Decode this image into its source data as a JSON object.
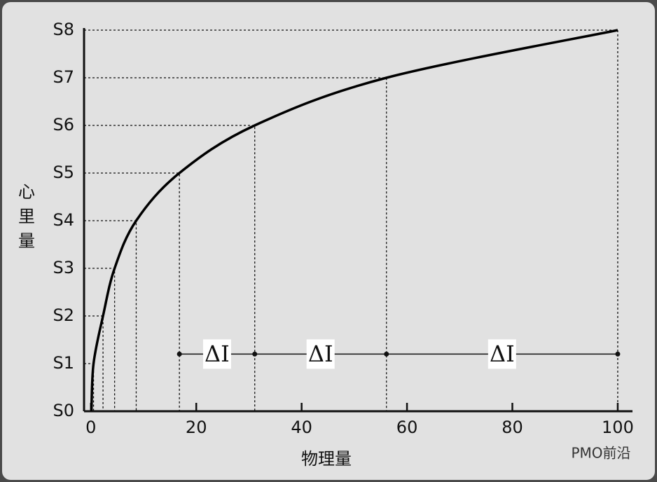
{
  "chart_data": {
    "type": "line",
    "x_label": "物理量",
    "y_label": "心里量",
    "watermark": "PMO前沿",
    "series": [
      {
        "name": "S",
        "color": "#000000",
        "x": [
          0.1,
          0.5,
          2.3,
          4.5,
          8.6,
          16.8,
          31.1,
          56.1,
          100
        ],
        "values": [
          0,
          1,
          2,
          3,
          4,
          5,
          6,
          7,
          8
        ]
      }
    ],
    "annotations": {
      "y": 1.2,
      "x": [
        16.8,
        31.1,
        56.1,
        100
      ],
      "labels": [
        "ΔI",
        "ΔI",
        "ΔI"
      ]
    },
    "xlim": [
      -1.3,
      102.8
    ],
    "xticks": [
      0,
      20,
      40,
      60,
      80,
      100
    ],
    "ylim": [
      0,
      8
    ],
    "yticks": [
      {
        "value": 0,
        "label": "S0"
      },
      {
        "value": 1,
        "label": "S1"
      },
      {
        "value": 2,
        "label": "S2"
      },
      {
        "value": 3,
        "label": "S3"
      },
      {
        "value": 4,
        "label": "S4"
      },
      {
        "value": 5,
        "label": "S5"
      },
      {
        "value": 6,
        "label": "S6"
      },
      {
        "value": 7,
        "label": "S7"
      },
      {
        "value": 8,
        "label": "S8"
      }
    ],
    "guides": true
  }
}
